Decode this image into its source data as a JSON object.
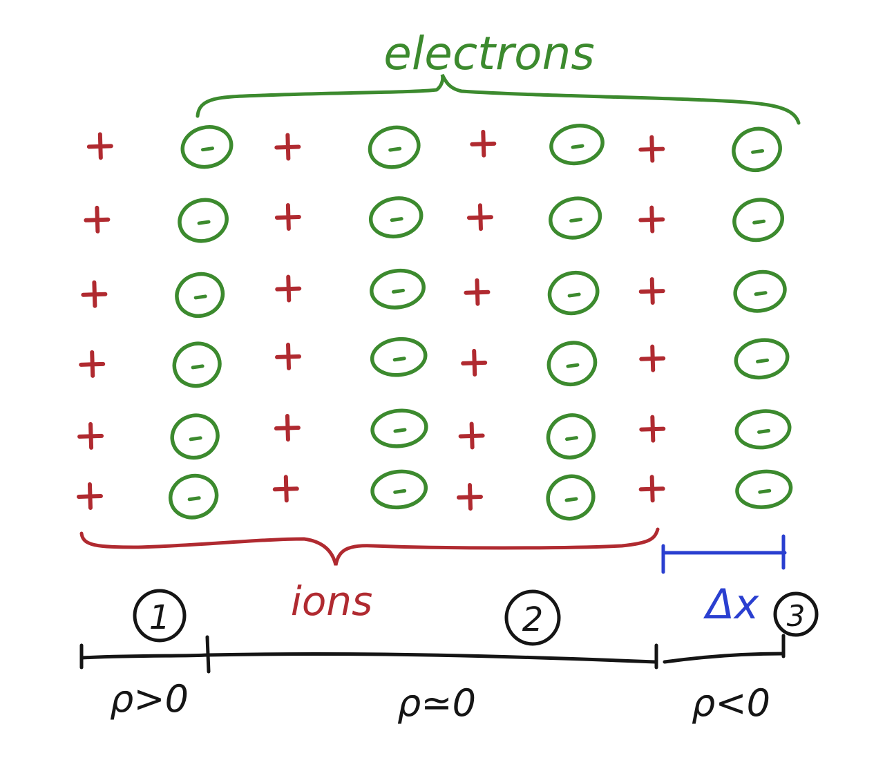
{
  "labels": {
    "electrons": "electrons",
    "ions": "ions",
    "delta_x": "Δx",
    "region1": "1",
    "region2": "2",
    "region3": "3",
    "rho1": "ρ>0",
    "rho2": "ρ≃0",
    "rho3": "ρ<0"
  },
  "colors": {
    "electrons": "#3c8a2e",
    "ions": "#b02a30",
    "dx": "#2a3fd0",
    "axis": "#151515"
  },
  "lattice": {
    "rows": 6,
    "ion_columns": 4,
    "electron_columns": 4,
    "ion_symbol": "+",
    "electron_symbol": "−"
  }
}
